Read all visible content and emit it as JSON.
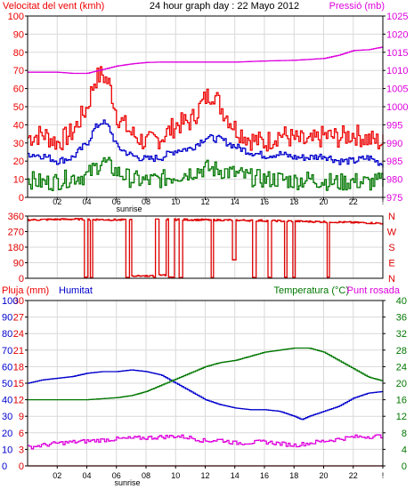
{
  "header": {
    "left_title": "Velocitat del vent (kmh)",
    "center_title": "24 hour graph day : 22 Mayo 2012",
    "right_title": "Pressió (mb)"
  },
  "panel3_header": {
    "rain_title": "Pluja (mm)",
    "humidity_title": "Humitat",
    "temp_title": "Temperatura (°C)",
    "dew_title": "Punt rosada"
  },
  "x_ticks": [
    "02",
    "04",
    "06",
    "08",
    "10",
    "12",
    "14",
    "16",
    "18",
    "20",
    "22",
    "!"
  ],
  "sunrise_label": "sunrise",
  "colors": {
    "frame": "#000000",
    "grid": "#d9d9d9",
    "gust": "#ee0000",
    "wind": "#0000cc",
    "green": "#007700",
    "pressure": "#dd00dd",
    "direction": "#dd0000",
    "rain": "#dd0000",
    "humidity": "#0000cc",
    "temperature": "#007700",
    "dewpoint": "#dd00dd"
  },
  "chart_data": [
    {
      "type": "line",
      "title": "24 hour graph day : 22 Mayo 2012",
      "x_range": [
        0,
        24
      ],
      "ylim_left": [
        0,
        100
      ],
      "yticks_left": [
        0,
        10,
        20,
        30,
        40,
        50,
        60,
        70,
        80,
        90,
        100
      ],
      "ylabel_left": "Velocitat del vent (kmh)",
      "ylim_right": [
        975,
        1025
      ],
      "yticks_right": [
        975,
        980,
        985,
        990,
        995,
        1000,
        1005,
        1010,
        1015,
        1020,
        1025
      ],
      "ylabel_right": "Pressió (mb)",
      "series": [
        {
          "color": "#ee0000",
          "axis": "left",
          "x": [
            0,
            1,
            2,
            3,
            4,
            4.5,
            5,
            5.5,
            6,
            7,
            8,
            9,
            10,
            11,
            12,
            12.5,
            13,
            14,
            15,
            16,
            17,
            18,
            19,
            20,
            21,
            22,
            23,
            24
          ],
          "y": [
            33,
            35,
            30,
            36,
            50,
            65,
            68,
            62,
            45,
            35,
            30,
            33,
            40,
            42,
            55,
            58,
            50,
            38,
            32,
            30,
            35,
            32,
            30,
            34,
            33,
            35,
            32,
            30
          ],
          "jitter": 6
        },
        {
          "color": "#0000cc",
          "axis": "left",
          "x": [
            0,
            1,
            2,
            3,
            4,
            4.5,
            5,
            5.5,
            6,
            7,
            8,
            9,
            10,
            11,
            12,
            13,
            14,
            15,
            16,
            17,
            18,
            19,
            20,
            21,
            22,
            23,
            24
          ],
          "y": [
            24,
            23,
            20,
            22,
            30,
            38,
            42,
            38,
            28,
            23,
            21,
            22,
            26,
            27,
            33,
            32,
            28,
            25,
            23,
            24,
            22,
            22,
            23,
            20,
            20,
            22,
            18
          ],
          "jitter": 2
        },
        {
          "color": "#007700",
          "axis": "left",
          "x": [
            0,
            1,
            2,
            3,
            4,
            5,
            6,
            7,
            8,
            9,
            10,
            11,
            12,
            13,
            14,
            15,
            16,
            17,
            18,
            19,
            20,
            21,
            22,
            23,
            24
          ],
          "y": [
            10,
            8,
            9,
            11,
            12,
            20,
            14,
            10,
            9,
            10,
            12,
            14,
            16,
            15,
            13,
            11,
            10,
            10,
            9,
            10,
            9,
            8,
            9,
            8,
            9
          ],
          "jitter": 5
        },
        {
          "color": "#dd00dd",
          "axis": "right",
          "x": [
            0,
            2,
            3,
            4,
            5,
            6,
            7,
            8,
            9,
            10,
            12,
            14,
            16,
            18,
            20,
            21,
            22,
            23,
            24
          ],
          "y": [
            1009.5,
            1009.5,
            1009.2,
            1009.2,
            1010.2,
            1011.2,
            1011.8,
            1012.2,
            1012.3,
            1012.3,
            1012.3,
            1012.3,
            1012.6,
            1012.8,
            1013.3,
            1014.2,
            1015.5,
            1015.7,
            1016.5
          ]
        }
      ]
    },
    {
      "type": "line",
      "x_range": [
        0,
        24
      ],
      "ylim_left": [
        0,
        360
      ],
      "yticks_left": [
        0,
        90,
        180,
        270,
        360
      ],
      "right_labels": [
        "N",
        "W",
        "S",
        "E",
        "N"
      ],
      "series": [
        {
          "color": "#dd0000",
          "x": [
            0,
            3,
            6,
            8,
            9,
            12,
            15,
            18,
            21,
            24
          ],
          "y": [
            338,
            342,
            338,
            335,
            340,
            338,
            335,
            330,
            325,
            318
          ],
          "drops": [
            [
              3.8,
              4.0,
              0
            ],
            [
              4.2,
              4.35,
              0
            ],
            [
              6.6,
              6.85,
              0
            ],
            [
              7.0,
              8.4,
              10
            ],
            [
              8.4,
              8.6,
              5
            ],
            [
              8.8,
              9.3,
              15
            ],
            [
              9.5,
              9.9,
              0
            ],
            [
              10.2,
              10.45,
              0
            ],
            [
              12.4,
              12.55,
              0
            ],
            [
              13.8,
              14.0,
              100
            ],
            [
              15.2,
              15.4,
              0
            ],
            [
              16.2,
              16.4,
              0
            ],
            [
              17.3,
              17.5,
              0
            ],
            [
              17.9,
              18.05,
              0
            ],
            [
              20.2,
              20.35,
              0
            ]
          ]
        }
      ]
    },
    {
      "type": "line",
      "x_range": [
        0,
        24
      ],
      "ylim_left_rain": [
        0,
        30
      ],
      "yticks_left_rain": [
        0,
        3,
        6,
        9,
        12,
        15,
        18,
        21,
        24,
        27,
        30
      ],
      "ylabel_left_rain": "Pluja (mm)",
      "ylim_left_humidity": [
        0,
        100
      ],
      "yticks_left_humidity": [
        0,
        10,
        20,
        30,
        40,
        50,
        60,
        70,
        80,
        90,
        100
      ],
      "ylabel_left_humidity": "Humitat",
      "ylim_right": [
        0,
        40
      ],
      "yticks_right": [
        0,
        4,
        8,
        12,
        16,
        20,
        24,
        28,
        32,
        36,
        40
      ],
      "ylabel_right": "Temperatura (°C)",
      "series": [
        {
          "color": "#0000cc",
          "axis": "humidity",
          "x": [
            0,
            1,
            2,
            3,
            4,
            5,
            6,
            7,
            8,
            9,
            10,
            11,
            12,
            13,
            14,
            15,
            16,
            17,
            18,
            18.5,
            19,
            20,
            21,
            22,
            23,
            24
          ],
          "y": [
            50,
            52,
            53,
            54,
            56,
            57,
            57,
            58,
            57,
            55,
            50,
            45,
            40,
            37,
            35,
            34,
            34,
            33,
            30,
            28,
            30,
            33,
            36,
            41,
            44,
            45
          ]
        },
        {
          "color": "#007700",
          "axis": "right",
          "x": [
            0,
            2,
            4,
            6,
            7,
            8,
            9,
            10,
            11,
            12,
            13,
            14,
            15,
            16,
            17,
            18,
            19,
            20,
            21,
            22,
            23,
            24
          ],
          "y": [
            16,
            16,
            16,
            16.5,
            17,
            18,
            19.5,
            21,
            22.5,
            24,
            25,
            25.5,
            26.5,
            27.5,
            28,
            28.5,
            28.5,
            27.5,
            25.5,
            23.5,
            21.5,
            20.5
          ]
        },
        {
          "color": "#dd00dd",
          "axis": "right",
          "x": [
            0,
            2,
            4,
            6,
            8,
            10,
            11,
            12,
            13,
            14,
            16,
            18,
            20,
            22,
            24
          ],
          "y": [
            4.5,
            5.5,
            6,
            6.5,
            6.8,
            7.2,
            6.8,
            6,
            6.3,
            5.5,
            5.8,
            5,
            6,
            7,
            7.2
          ],
          "jitter": 0.5
        },
        {
          "color": "#dd0000",
          "axis": "rain",
          "x": [
            0,
            24
          ],
          "y": [
            0,
            0
          ]
        }
      ]
    }
  ]
}
